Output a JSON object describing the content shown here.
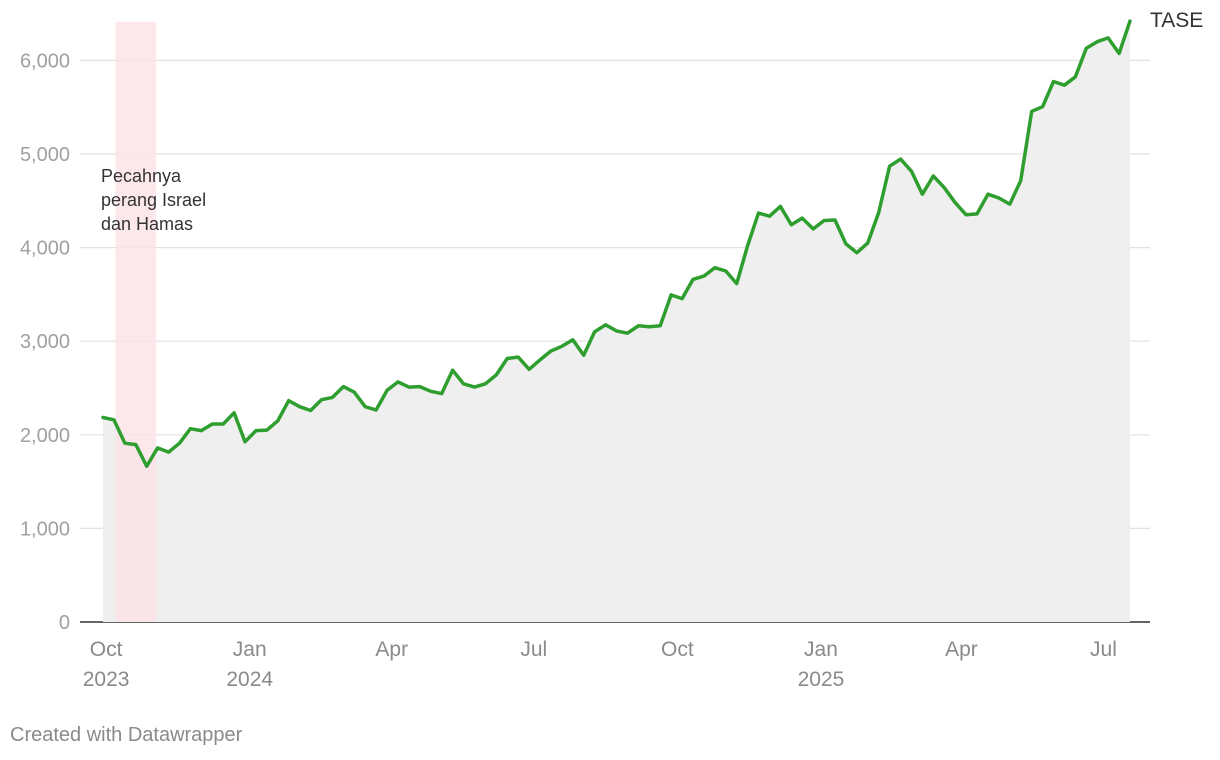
{
  "chart_data": {
    "type": "area",
    "series": [
      {
        "name": "TASE",
        "color": "#2e9e2e",
        "fill_color": "#efefef",
        "values": [
          [
            "2023-09-29",
            2185
          ],
          [
            "2023-10-06",
            2160
          ],
          [
            "2023-10-13",
            1910
          ],
          [
            "2023-10-20",
            1895
          ],
          [
            "2023-10-27",
            1665
          ],
          [
            "2023-11-03",
            1860
          ],
          [
            "2023-11-10",
            1815
          ],
          [
            "2023-11-17",
            1910
          ],
          [
            "2023-11-24",
            2065
          ],
          [
            "2023-12-01",
            2045
          ],
          [
            "2023-12-08",
            2115
          ],
          [
            "2023-12-15",
            2115
          ],
          [
            "2023-12-22",
            2235
          ],
          [
            "2023-12-29",
            1925
          ],
          [
            "2024-01-05",
            2045
          ],
          [
            "2024-01-12",
            2050
          ],
          [
            "2024-01-19",
            2150
          ],
          [
            "2024-01-26",
            2365
          ],
          [
            "2024-02-02",
            2300
          ],
          [
            "2024-02-09",
            2260
          ],
          [
            "2024-02-16",
            2375
          ],
          [
            "2024-02-23",
            2400
          ],
          [
            "2024-03-01",
            2515
          ],
          [
            "2024-03-08",
            2455
          ],
          [
            "2024-03-15",
            2300
          ],
          [
            "2024-03-22",
            2265
          ],
          [
            "2024-03-29",
            2475
          ],
          [
            "2024-04-05",
            2565
          ],
          [
            "2024-04-12",
            2510
          ],
          [
            "2024-04-19",
            2515
          ],
          [
            "2024-04-26",
            2465
          ],
          [
            "2024-05-03",
            2440
          ],
          [
            "2024-05-10",
            2690
          ],
          [
            "2024-05-17",
            2545
          ],
          [
            "2024-05-24",
            2510
          ],
          [
            "2024-05-31",
            2545
          ],
          [
            "2024-06-07",
            2640
          ],
          [
            "2024-06-14",
            2815
          ],
          [
            "2024-06-21",
            2830
          ],
          [
            "2024-06-28",
            2700
          ],
          [
            "2024-07-05",
            2800
          ],
          [
            "2024-07-12",
            2895
          ],
          [
            "2024-07-19",
            2945
          ],
          [
            "2024-07-26",
            3015
          ],
          [
            "2024-08-02",
            2850
          ],
          [
            "2024-08-09",
            3100
          ],
          [
            "2024-08-16",
            3175
          ],
          [
            "2024-08-23",
            3110
          ],
          [
            "2024-08-30",
            3085
          ],
          [
            "2024-09-06",
            3165
          ],
          [
            "2024-09-13",
            3155
          ],
          [
            "2024-09-20",
            3165
          ],
          [
            "2024-09-27",
            3495
          ],
          [
            "2024-10-04",
            3455
          ],
          [
            "2024-10-11",
            3660
          ],
          [
            "2024-10-18",
            3695
          ],
          [
            "2024-10-25",
            3785
          ],
          [
            "2024-11-01",
            3750
          ],
          [
            "2024-11-08",
            3615
          ],
          [
            "2024-11-15",
            4020
          ],
          [
            "2024-11-22",
            4370
          ],
          [
            "2024-11-29",
            4335
          ],
          [
            "2024-12-06",
            4440
          ],
          [
            "2024-12-13",
            4245
          ],
          [
            "2024-12-20",
            4315
          ],
          [
            "2024-12-27",
            4200
          ],
          [
            "2025-01-03",
            4290
          ],
          [
            "2025-01-10",
            4295
          ],
          [
            "2025-01-17",
            4040
          ],
          [
            "2025-01-24",
            3945
          ],
          [
            "2025-01-31",
            4050
          ],
          [
            "2025-02-07",
            4375
          ],
          [
            "2025-02-14",
            4870
          ],
          [
            "2025-02-21",
            4945
          ],
          [
            "2025-02-28",
            4815
          ],
          [
            "2025-03-07",
            4570
          ],
          [
            "2025-03-14",
            4765
          ],
          [
            "2025-03-21",
            4640
          ],
          [
            "2025-03-28",
            4480
          ],
          [
            "2025-04-04",
            4350
          ],
          [
            "2025-04-11",
            4360
          ],
          [
            "2025-04-18",
            4570
          ],
          [
            "2025-04-25",
            4530
          ],
          [
            "2025-05-02",
            4465
          ],
          [
            "2025-05-09",
            4715
          ],
          [
            "2025-05-16",
            5455
          ],
          [
            "2025-05-23",
            5505
          ],
          [
            "2025-05-30",
            5775
          ],
          [
            "2025-06-06",
            5735
          ],
          [
            "2025-06-13",
            5825
          ],
          [
            "2025-06-20",
            6130
          ],
          [
            "2025-06-27",
            6200
          ],
          [
            "2025-07-04",
            6240
          ],
          [
            "2025-07-11",
            6075
          ],
          [
            "2025-07-18",
            6420
          ]
        ]
      }
    ],
    "x_type": "date",
    "xlim": [
      "2023-09-29",
      "2025-07-18"
    ],
    "ylim": [
      0,
      6400
    ],
    "y_ticks": [
      {
        "value": 0,
        "label": "0"
      },
      {
        "value": 1000,
        "label": "1,000"
      },
      {
        "value": 2000,
        "label": "2,000"
      },
      {
        "value": 3000,
        "label": "3,000"
      },
      {
        "value": 4000,
        "label": "4,000"
      },
      {
        "value": 5000,
        "label": "5,000"
      },
      {
        "value": 6000,
        "label": "6,000"
      }
    ],
    "x_ticks": [
      {
        "date": "2023-10-01",
        "label": "Oct",
        "year": "2023"
      },
      {
        "date": "2024-01-01",
        "label": "Jan",
        "year": "2024"
      },
      {
        "date": "2024-04-01",
        "label": "Apr",
        "year": ""
      },
      {
        "date": "2024-07-01",
        "label": "Jul",
        "year": ""
      },
      {
        "date": "2024-10-01",
        "label": "Oct",
        "year": ""
      },
      {
        "date": "2025-01-01",
        "label": "Jan",
        "year": "2025"
      },
      {
        "date": "2025-04-01",
        "label": "Apr",
        "year": ""
      },
      {
        "date": "2025-07-01",
        "label": "Jul",
        "year": ""
      }
    ],
    "grid": true,
    "highlight_range": {
      "start": "2023-10-07",
      "end": "2023-11-02",
      "color": "#fbe3e6",
      "annotation": [
        "Pecahnya",
        "perang Israel",
        "dan Hamas"
      ]
    },
    "title": "",
    "xlabel": "",
    "ylabel": ""
  },
  "footer": {
    "credit": "Created with Datawrapper"
  }
}
